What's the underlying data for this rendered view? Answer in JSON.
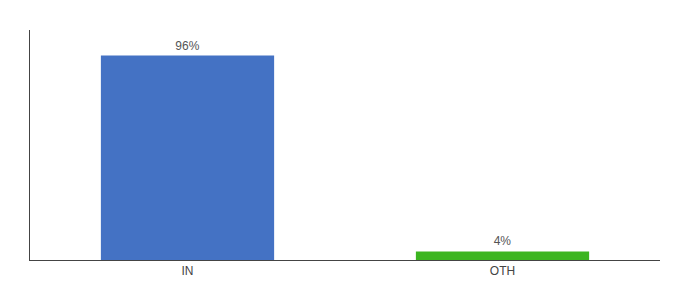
{
  "chart_data": {
    "type": "bar",
    "categories": [
      "IN",
      "OTH"
    ],
    "values": [
      96,
      4
    ],
    "colors": [
      "#4472c4",
      "#3cb520"
    ],
    "data_labels": true,
    "value_labels": [
      "96%",
      "4%"
    ],
    "ylim": [
      0,
      108
    ],
    "grid": false,
    "tick_labels": "x"
  }
}
